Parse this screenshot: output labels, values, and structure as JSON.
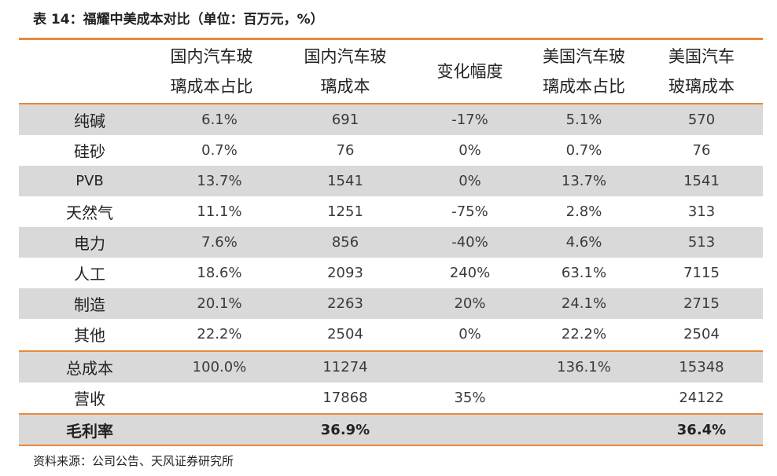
{
  "title": "表 14：福耀中美成本对比（单位：百万元，%）",
  "headers": [
    {
      "line1": "",
      "line2": ""
    },
    {
      "line1": "国内汽车玻",
      "line2": "璃成本占比"
    },
    {
      "line1": "国内汽车玻",
      "line2": "璃成本"
    },
    {
      "line1": "变化幅度",
      "line2": ""
    },
    {
      "line1": "美国汽车玻",
      "line2": "璃成本占比"
    },
    {
      "line1": "美国汽车",
      "line2": "玻璃成本"
    }
  ],
  "rows": [
    {
      "label": "纯碱",
      "cells": [
        "6.1%",
        "691",
        "-17%",
        "5.1%",
        "570"
      ]
    },
    {
      "label": "硅砂",
      "cells": [
        "0.7%",
        "76",
        "0%",
        "0.7%",
        "76"
      ]
    },
    {
      "label": "PVB",
      "cells": [
        "13.7%",
        "1541",
        "0%",
        "13.7%",
        "1541"
      ]
    },
    {
      "label": "天然气",
      "cells": [
        "11.1%",
        "1251",
        "-75%",
        "2.8%",
        "313"
      ]
    },
    {
      "label": "电力",
      "cells": [
        "7.6%",
        "856",
        "-40%",
        "4.6%",
        "513"
      ]
    },
    {
      "label": "人工",
      "cells": [
        "18.6%",
        "2093",
        "240%",
        "63.1%",
        "7115"
      ]
    },
    {
      "label": "制造",
      "cells": [
        "20.1%",
        "2263",
        "20%",
        "24.1%",
        "2715"
      ]
    },
    {
      "label": "其他",
      "cells": [
        "22.2%",
        "2504",
        "0%",
        "22.2%",
        "2504"
      ]
    },
    {
      "label": "总成本",
      "cells": [
        "100.0%",
        "11274",
        "",
        "136.1%",
        "15348"
      ]
    },
    {
      "label": "营收",
      "cells": [
        "",
        "17868",
        "35%",
        "",
        "24122"
      ]
    },
    {
      "label": "毛利率",
      "cells": [
        "",
        "36.9%",
        "",
        "",
        "36.4%"
      ]
    }
  ],
  "source": "资料来源：公司公告、天风证券研究所",
  "colors": {
    "accent": "#e8893c",
    "shade": "#d9d9d9"
  }
}
